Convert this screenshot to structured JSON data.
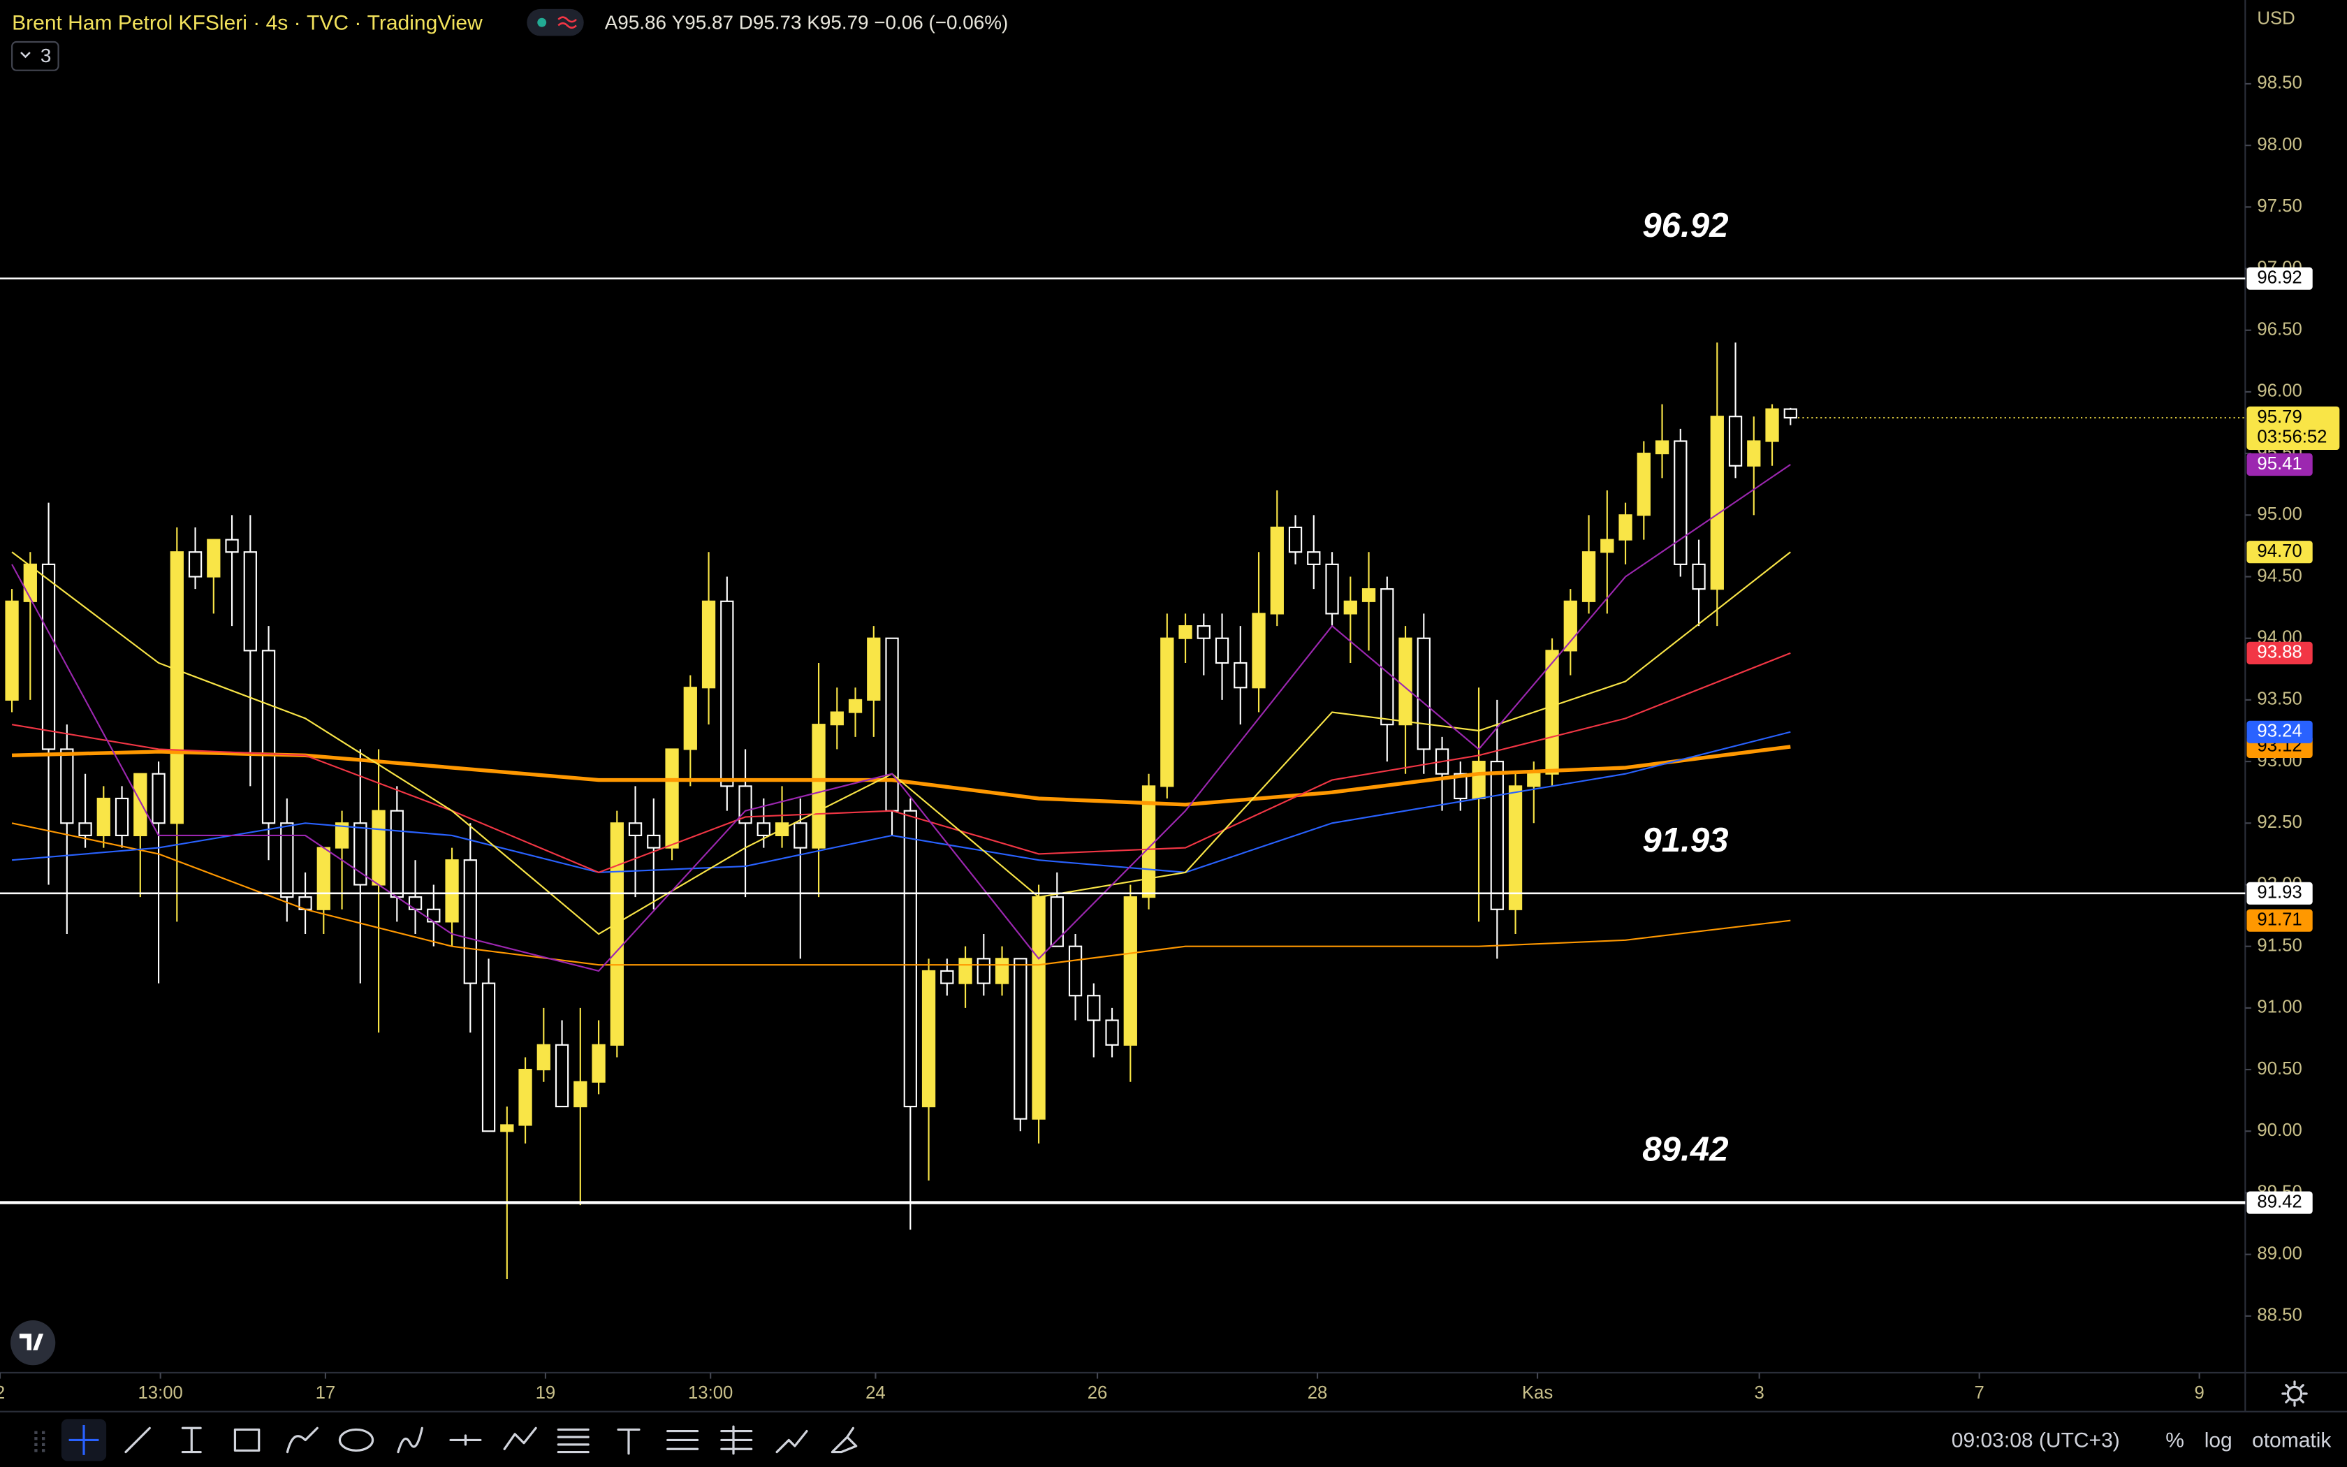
{
  "header": {
    "symbol": "Brent Ham Petrol KFSleri",
    "separator": "·",
    "interval": "4s",
    "exchange": "TVC",
    "source": "TradingView",
    "ohlc_labels": [
      "A",
      "Y",
      "D",
      "K"
    ],
    "change": "−0.06 (−0.06%)",
    "indicator_count": "3",
    "currency": "USD"
  },
  "chart_data": {
    "type": "candlestick",
    "up_color": "#f9e547",
    "down_color": "#ffffff",
    "x": [
      0,
      1,
      2,
      3,
      4,
      5,
      6,
      7,
      8,
      9,
      10,
      11,
      12,
      13,
      14,
      15,
      16,
      17,
      18,
      19,
      20,
      21,
      22,
      23,
      24,
      25,
      26,
      27,
      28,
      29,
      30,
      31,
      32,
      33,
      34,
      35,
      36,
      37,
      38,
      39,
      40,
      41,
      42,
      43,
      44,
      45,
      46,
      47,
      48,
      49,
      50,
      51,
      52,
      53,
      54,
      55,
      56,
      57,
      58,
      59,
      60,
      61,
      62,
      63,
      64,
      65,
      66,
      67,
      68,
      69,
      70,
      71,
      72,
      73,
      74,
      75,
      76,
      77,
      78,
      79,
      80,
      81,
      82,
      83,
      84,
      85,
      86,
      87,
      88,
      89,
      90,
      91,
      92,
      93,
      94,
      95,
      96,
      97
    ],
    "open": [
      93.5,
      94.3,
      94.6,
      93.1,
      92.5,
      92.4,
      92.7,
      92.4,
      92.9,
      92.5,
      94.7,
      94.5,
      94.8,
      94.7,
      93.9,
      92.5,
      91.9,
      91.8,
      92.3,
      92.5,
      92.0,
      92.6,
      91.9,
      91.8,
      91.7,
      92.2,
      91.2,
      90.0,
      90.05,
      90.5,
      90.7,
      90.2,
      90.4,
      90.7,
      92.5,
      92.4,
      92.3,
      93.1,
      93.6,
      94.3,
      92.8,
      92.5,
      92.4,
      92.5,
      92.3,
      93.3,
      93.4,
      93.5,
      94.0,
      92.6,
      90.2,
      91.3,
      91.2,
      91.4,
      91.2,
      91.4,
      90.1,
      91.9,
      91.5,
      91.1,
      90.9,
      90.7,
      91.9,
      92.8,
      94.0,
      94.1,
      94.0,
      93.8,
      93.6,
      94.2,
      94.9,
      94.7,
      94.6,
      94.2,
      94.3,
      94.4,
      93.3,
      94.0,
      93.1,
      92.9,
      92.7,
      93.0,
      91.8,
      92.8,
      92.9,
      93.9,
      94.3,
      94.7,
      94.8,
      95.0,
      95.5,
      95.6,
      94.6,
      94.4,
      95.8,
      95.4,
      95.6,
      95.86
    ],
    "high": [
      94.4,
      94.7,
      95.1,
      93.3,
      92.9,
      92.8,
      92.8,
      92.9,
      93.0,
      94.9,
      94.9,
      94.8,
      95.0,
      95.0,
      94.1,
      92.7,
      92.1,
      92.3,
      92.6,
      93.1,
      93.1,
      92.8,
      92.2,
      92.0,
      92.3,
      92.5,
      91.4,
      90.2,
      90.6,
      91.0,
      90.9,
      91.0,
      90.9,
      92.6,
      92.8,
      92.7,
      93.1,
      93.7,
      94.7,
      94.5,
      93.1,
      92.7,
      92.8,
      92.7,
      93.8,
      93.6,
      93.6,
      94.1,
      94.0,
      92.7,
      91.4,
      91.4,
      91.5,
      91.6,
      91.5,
      91.4,
      92.0,
      92.1,
      91.6,
      91.2,
      91.0,
      92.0,
      92.9,
      94.2,
      94.2,
      94.2,
      94.2,
      94.1,
      94.7,
      95.2,
      95.0,
      95.0,
      94.7,
      94.5,
      94.7,
      94.5,
      94.1,
      94.2,
      93.2,
      93.0,
      93.6,
      93.5,
      92.9,
      93.0,
      94.0,
      94.4,
      95.0,
      95.2,
      95.1,
      95.6,
      95.9,
      95.7,
      94.8,
      96.4,
      96.4,
      95.8,
      95.9,
      95.87
    ],
    "low": [
      93.4,
      93.5,
      92.0,
      91.6,
      92.3,
      92.3,
      92.3,
      91.9,
      91.2,
      91.7,
      94.4,
      94.2,
      94.1,
      92.8,
      92.2,
      91.7,
      91.6,
      91.6,
      91.8,
      91.2,
      90.8,
      91.7,
      91.6,
      91.5,
      91.5,
      90.8,
      90.0,
      88.8,
      89.9,
      90.4,
      90.2,
      89.4,
      90.3,
      90.6,
      91.9,
      91.8,
      92.2,
      92.8,
      93.3,
      92.6,
      91.9,
      92.3,
      92.3,
      91.4,
      91.9,
      93.1,
      93.2,
      93.2,
      92.4,
      89.2,
      89.6,
      91.1,
      91.0,
      91.1,
      91.1,
      90.0,
      89.9,
      91.5,
      90.9,
      90.6,
      90.6,
      90.4,
      91.8,
      92.7,
      93.8,
      93.7,
      93.5,
      93.3,
      93.4,
      94.1,
      94.6,
      94.4,
      94.1,
      93.8,
      93.9,
      93.0,
      92.9,
      92.9,
      92.6,
      92.6,
      91.7,
      91.4,
      91.6,
      92.5,
      92.8,
      93.7,
      94.2,
      94.2,
      94.6,
      94.8,
      95.3,
      94.5,
      94.1,
      94.1,
      95.3,
      95.0,
      95.4,
      95.73
    ],
    "close": [
      94.3,
      94.6,
      93.1,
      92.5,
      92.4,
      92.7,
      92.4,
      92.9,
      92.5,
      94.7,
      94.5,
      94.8,
      94.7,
      93.9,
      92.5,
      91.9,
      91.8,
      92.3,
      92.5,
      92.0,
      92.6,
      91.9,
      91.8,
      91.7,
      92.2,
      91.2,
      90.0,
      90.05,
      90.5,
      90.7,
      90.2,
      90.4,
      90.7,
      92.5,
      92.4,
      92.3,
      93.1,
      93.6,
      94.3,
      92.8,
      92.5,
      92.4,
      92.5,
      92.3,
      93.3,
      93.4,
      93.5,
      94.0,
      92.6,
      90.2,
      91.3,
      91.2,
      91.4,
      91.2,
      91.4,
      90.1,
      91.9,
      91.5,
      91.1,
      90.9,
      90.7,
      91.9,
      92.8,
      94.0,
      94.1,
      94.0,
      93.8,
      93.6,
      94.2,
      94.9,
      94.7,
      94.6,
      94.2,
      94.3,
      94.4,
      93.3,
      94.0,
      93.1,
      92.9,
      92.7,
      93.0,
      91.8,
      92.8,
      92.9,
      93.9,
      94.3,
      94.7,
      94.8,
      95.0,
      95.5,
      95.6,
      94.6,
      94.4,
      95.8,
      95.4,
      95.6,
      95.86,
      95.79
    ],
    "countdown": "03:56:52",
    "series": [
      {
        "color": "#ff9800",
        "line_width": 1,
        "x": [
          0,
          8,
          16,
          24,
          32,
          40,
          48,
          56,
          64,
          72,
          80,
          88,
          97
        ],
        "values": [
          92.5,
          92.25,
          91.8,
          91.5,
          91.35,
          91.35,
          91.35,
          91.35,
          91.5,
          91.5,
          91.5,
          91.55,
          91.71
        ],
        "last_label": "91.71",
        "label_text": "#000000"
      },
      {
        "color": "#ff9800",
        "line_width": 2.5,
        "x": [
          0,
          8,
          16,
          24,
          32,
          40,
          48,
          56,
          64,
          72,
          80,
          88,
          97
        ],
        "values": [
          93.05,
          93.08,
          93.05,
          92.95,
          92.85,
          92.85,
          92.85,
          92.7,
          92.65,
          92.75,
          92.9,
          92.95,
          93.12
        ],
        "last_label": "93.12",
        "label_text": "#000000"
      },
      {
        "color": "#2962ff",
        "line_width": 1,
        "x": [
          0,
          8,
          16,
          24,
          32,
          40,
          48,
          56,
          64,
          72,
          80,
          88,
          97
        ],
        "values": [
          92.2,
          92.3,
          92.5,
          92.4,
          92.1,
          92.15,
          92.4,
          92.2,
          92.1,
          92.5,
          92.7,
          92.9,
          93.24
        ],
        "last_label": "93.24",
        "label_text": "#ffffff"
      },
      {
        "color": "#f23645",
        "line_width": 1,
        "x": [
          0,
          8,
          16,
          24,
          32,
          40,
          48,
          56,
          64,
          72,
          80,
          88,
          97
        ],
        "values": [
          93.3,
          93.1,
          93.05,
          92.6,
          92.1,
          92.55,
          92.6,
          92.25,
          92.3,
          92.85,
          93.05,
          93.35,
          93.88
        ],
        "last_label": "93.88",
        "label_text": "#ffffff"
      },
      {
        "color": "#f9e547",
        "line_width": 1,
        "x": [
          0,
          8,
          16,
          24,
          32,
          40,
          48,
          56,
          64,
          72,
          80,
          88,
          97
        ],
        "values": [
          94.7,
          93.8,
          93.35,
          92.6,
          91.6,
          92.3,
          92.9,
          91.9,
          92.1,
          93.4,
          93.25,
          93.65,
          94.7
        ],
        "last_label": "94.70",
        "label_text": "#000000"
      },
      {
        "color": "#9c27b0",
        "line_width": 1,
        "x": [
          0,
          8,
          16,
          24,
          32,
          40,
          48,
          56,
          64,
          72,
          80,
          88,
          97
        ],
        "values": [
          94.6,
          92.4,
          92.4,
          91.6,
          91.3,
          92.6,
          92.9,
          91.4,
          92.6,
          94.1,
          93.1,
          94.5,
          95.41
        ],
        "last_label": "95.41",
        "label_text": "#ffffff"
      }
    ],
    "levels": [
      {
        "value": 96.92,
        "line_width": 1.2
      },
      {
        "value": 91.93,
        "line_width": 1.2
      },
      {
        "value": 89.42,
        "line_width": 2
      }
    ],
    "xlim": [
      -0.65,
      121.8
    ],
    "ylim": [
      88.04,
      99.18
    ],
    "xticks": [
      {
        "value": -0.65,
        "label": "2"
      },
      {
        "value": 8.1,
        "label": "13:00"
      },
      {
        "value": 17.1,
        "label": "17"
      },
      {
        "value": 29.1,
        "label": "19"
      },
      {
        "value": 38.1,
        "label": "13:00"
      },
      {
        "value": 47.1,
        "label": "24"
      },
      {
        "value": 59.2,
        "label": "26"
      },
      {
        "value": 71.2,
        "label": "28"
      },
      {
        "value": 83.2,
        "label": "Kas"
      },
      {
        "value": 95.3,
        "label": "3"
      },
      {
        "value": 107.3,
        "label": "7"
      },
      {
        "value": 119.3,
        "label": "9"
      }
    ],
    "yticks": [
      {
        "value": 88.5,
        "label": "88.50"
      },
      {
        "value": 89,
        "label": "89.00"
      },
      {
        "value": 89.5,
        "label": "89.50"
      },
      {
        "value": 90,
        "label": "90.00"
      },
      {
        "value": 90.5,
        "label": "90.50"
      },
      {
        "value": 91,
        "label": "91.00"
      },
      {
        "value": 91.5,
        "label": "91.50"
      },
      {
        "value": 92,
        "label": "92.00"
      },
      {
        "value": 92.5,
        "label": "92.50"
      },
      {
        "value": 93,
        "label": "93.00"
      },
      {
        "value": 93.5,
        "label": "93.50"
      },
      {
        "value": 94,
        "label": "94.00"
      },
      {
        "value": 94.5,
        "label": "94.50"
      },
      {
        "value": 95,
        "label": "95.00"
      },
      {
        "value": 95.5,
        "label": "95.50"
      },
      {
        "value": 96,
        "label": "96.00"
      },
      {
        "value": 96.5,
        "label": "96.50"
      },
      {
        "value": 97,
        "label": "97.00"
      },
      {
        "value": 97.5,
        "label": "97.50"
      },
      {
        "value": 98,
        "label": "98.00"
      },
      {
        "value": 98.5,
        "label": "98.50"
      }
    ]
  },
  "footer": {
    "time": "09:03:08 (UTC+3)",
    "percent": "%",
    "log": "log",
    "auto": "otomatik"
  }
}
